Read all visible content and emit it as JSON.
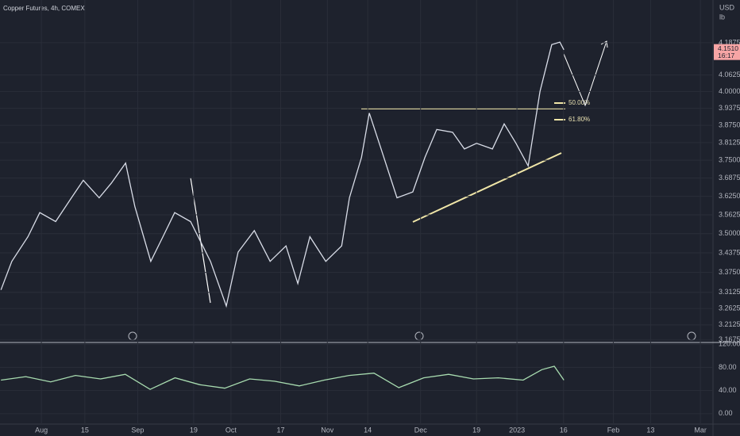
{
  "chart_data": [
    {
      "type": "line",
      "title": "Copper Futures, 4h, COMEX",
      "currency": "USD",
      "unit": "lb",
      "log_scale": true,
      "color": "#d9dde8",
      "x": [
        -4.0,
        -0.5,
        4.7,
        8.5,
        13.6,
        18.7,
        22.5,
        27.6,
        31.5,
        36.1,
        39.1,
        44.2,
        48.1,
        51.9,
        57.0,
        63.4,
        68.5,
        72.3,
        77.5,
        82.6,
        87.7,
        91.5,
        95.4,
        100.5,
        105.6,
        108.1,
        112.0,
        114.5,
        118.3,
        123.4,
        128.5,
        132.4,
        136.2,
        141.3,
        145.1,
        149.0,
        154.1,
        157.9,
        161.7,
        165.6,
        169.4,
        173.2,
        175.8,
        177.1
      ],
      "values": [
        3.32,
        3.41,
        3.49,
        3.57,
        3.54,
        3.62,
        3.68,
        3.62,
        3.67,
        3.74,
        3.59,
        3.41,
        3.49,
        3.57,
        3.54,
        3.41,
        3.27,
        3.44,
        3.51,
        3.41,
        3.46,
        3.34,
        3.49,
        3.41,
        3.46,
        3.62,
        3.76,
        3.92,
        3.79,
        3.62,
        3.64,
        3.76,
        3.86,
        3.85,
        3.79,
        3.81,
        3.79,
        3.88,
        3.81,
        3.73,
        4.0,
        4.18,
        4.19,
        4.16
      ],
      "xlim": [
        -4.3,
        224.3
      ],
      "xticks": [
        {
          "value": 9,
          "label": "Aug"
        },
        {
          "value": 23,
          "label": "15"
        },
        {
          "value": 40,
          "label": "Sep"
        },
        {
          "value": 58,
          "label": "19"
        },
        {
          "value": 70,
          "label": "Oct"
        },
        {
          "value": 86,
          "label": "17"
        },
        {
          "value": 101,
          "label": "Nov"
        },
        {
          "value": 114,
          "label": "14"
        },
        {
          "value": 131,
          "label": "Dec"
        },
        {
          "value": 149,
          "label": "19"
        },
        {
          "value": 162,
          "label": "2023"
        },
        {
          "value": 177,
          "label": "16"
        },
        {
          "value": 193,
          "label": "Feb"
        },
        {
          "value": 205,
          "label": "13"
        },
        {
          "value": 221,
          "label": "Mar"
        }
      ],
      "ylim": [
        3.16,
        4.359
      ],
      "yticks": [
        4.1875,
        4.0625,
        {
          "value": 4.0,
          "label": "4.0000"
        },
        3.9375,
        {
          "value": 3.875,
          "label": "3.8750"
        },
        3.8125,
        {
          "value": 3.75,
          "label": "3.7500"
        },
        3.6875,
        {
          "value": 3.625,
          "label": "3.6250"
        },
        3.5625,
        {
          "value": 3.5,
          "label": "3.5000"
        },
        3.4375,
        {
          "value": 3.375,
          "label": "3.3750"
        },
        3.3125,
        3.2625,
        3.2125,
        3.1675
      ],
      "price_tag": {
        "value": 4.151,
        "label": "4.1510",
        "time": "16:17"
      },
      "annotations": [
        "50.00%",
        "61.80%"
      ]
    },
    {
      "type": "line",
      "color": "#a8dcb0",
      "x": [
        -4.0,
        4.0,
        12.0,
        20.0,
        28.0,
        36.0,
        44.0,
        52.0,
        60.0,
        68.0,
        76.0,
        84.0,
        92.0,
        100.0,
        108.0,
        116.0,
        124.0,
        132.0,
        140.0,
        148.0,
        156.0,
        164.0,
        170.0,
        174.0,
        177.1
      ],
      "values": [
        58,
        64,
        55,
        66,
        60,
        68,
        42,
        62,
        50,
        44,
        60,
        56,
        48,
        58,
        66,
        70,
        45,
        62,
        68,
        60,
        62,
        58,
        76,
        82,
        58
      ],
      "xlim": [
        -4.3,
        224.3
      ],
      "ylim": [
        -18,
        123
      ],
      "yticks": [
        {
          "value": 120,
          "label": "120.00"
        },
        {
          "value": 80,
          "label": "80.00"
        },
        {
          "value": 40,
          "label": "40.00"
        },
        {
          "value": 0,
          "label": "0.00"
        }
      ]
    }
  ]
}
